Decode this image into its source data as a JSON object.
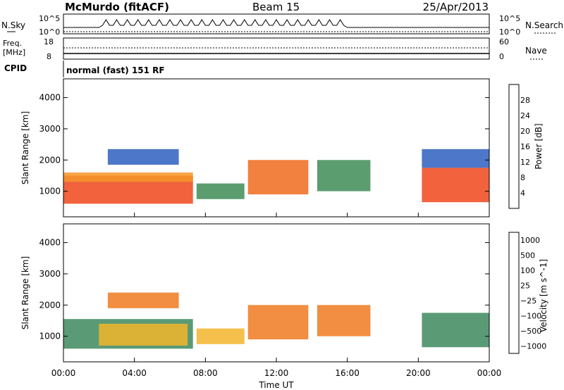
{
  "header": {
    "title": "McMurdo (fitACF)",
    "beam": "Beam 15",
    "date": "25/Apr/2013"
  },
  "scan_panel": {
    "left_label": "N.Sky",
    "right_label": "N.Search",
    "ticks_left": [
      "10^5",
      "10^0"
    ],
    "ticks_right": [
      "10^5",
      "10^0"
    ]
  },
  "freq_panel": {
    "left_label_top": "Freq.",
    "left_label_bottom": "[MHz]",
    "left_ticks": [
      "18",
      "8"
    ],
    "right_label": "Nave",
    "right_ticks": [
      "60",
      "0"
    ]
  },
  "cpid": {
    "label": "CPID",
    "value": "normal (fast) 151 RF"
  },
  "chart_data": [
    {
      "type": "heatmap",
      "name": "power-panel",
      "ylabel": "Slant Range [km]",
      "yticks": [
        "1000",
        "2000",
        "3000",
        "4000"
      ],
      "ylim": [
        180,
        4600
      ],
      "x_range_hours": [
        0,
        24
      ],
      "colorbar_label": "Power [dB]",
      "colorbar_ticks": [
        "4",
        "8",
        "12",
        "16",
        "20",
        "24",
        "28"
      ],
      "colorbar_colors": [
        "#0a1ad8",
        "#2e5fbe",
        "#3f8c57",
        "#7ab848",
        "#f2c100",
        "#f5962a",
        "#f06a1c",
        "#e01212"
      ],
      "echo_bands": [
        {
          "t_start": 0.0,
          "t_end": 7.3,
          "r_low": 600,
          "r_high": 1500,
          "color": "#f0461b"
        },
        {
          "t_start": 0.0,
          "t_end": 7.3,
          "r_low": 1300,
          "r_high": 1600,
          "color": "#f5962a"
        },
        {
          "t_start": 2.5,
          "t_end": 6.5,
          "r_low": 1850,
          "r_high": 2350,
          "color": "#2e5fbe"
        },
        {
          "t_start": 7.5,
          "t_end": 10.2,
          "r_low": 750,
          "r_high": 1250,
          "color": "#3f8c57"
        },
        {
          "t_start": 10.4,
          "t_end": 13.8,
          "r_low": 900,
          "r_high": 2000,
          "color": "#f06a1c"
        },
        {
          "t_start": 14.3,
          "t_end": 17.3,
          "r_low": 1000,
          "r_high": 2000,
          "color": "#3f8c57"
        },
        {
          "t_start": 20.2,
          "t_end": 24.0,
          "r_low": 650,
          "r_high": 1750,
          "color": "#f0461b"
        },
        {
          "t_start": 20.2,
          "t_end": 24.0,
          "r_low": 1750,
          "r_high": 2350,
          "color": "#2e5fbe"
        }
      ]
    },
    {
      "type": "heatmap",
      "name": "velocity-panel",
      "ylabel": "Slant Range [km]",
      "yticks": [
        "1000",
        "2000",
        "3000",
        "4000"
      ],
      "ylim": [
        180,
        4600
      ],
      "x_range_hours": [
        0,
        24
      ],
      "xlabel": "Time UT",
      "xticks": [
        "00:00",
        "04:00",
        "08:00",
        "12:00",
        "16:00",
        "20:00",
        "00:00"
      ],
      "colorbar_label": "Velocity [m s^-1]",
      "colorbar_ticks": [
        "1000",
        "500",
        "100",
        "25",
        "−25",
        "−100",
        "−500",
        "−1000"
      ],
      "colorbar_colors": [
        "#1a3fb8",
        "#4e7ea0",
        "#3d8a5e",
        "#7cc43a",
        "#c8c8c8",
        "#f2b52c",
        "#f07a20",
        "#e8281a"
      ],
      "echo_bands": [
        {
          "t_start": 0.0,
          "t_end": 7.3,
          "r_low": 600,
          "r_high": 1550,
          "color": "#3d8a5e"
        },
        {
          "t_start": 2.0,
          "t_end": 7.0,
          "r_low": 700,
          "r_high": 1400,
          "color": "#f2b52c"
        },
        {
          "t_start": 2.5,
          "t_end": 6.5,
          "r_low": 1900,
          "r_high": 2400,
          "color": "#f07a20"
        },
        {
          "t_start": 7.5,
          "t_end": 10.2,
          "r_low": 750,
          "r_high": 1250,
          "color": "#f2b52c"
        },
        {
          "t_start": 10.4,
          "t_end": 13.8,
          "r_low": 900,
          "r_high": 2000,
          "color": "#f07a20"
        },
        {
          "t_start": 14.3,
          "t_end": 17.3,
          "r_low": 1000,
          "r_high": 2000,
          "color": "#f07a20"
        },
        {
          "t_start": 20.2,
          "t_end": 24.0,
          "r_low": 650,
          "r_high": 1750,
          "color": "#3d8a5e"
        }
      ]
    }
  ]
}
